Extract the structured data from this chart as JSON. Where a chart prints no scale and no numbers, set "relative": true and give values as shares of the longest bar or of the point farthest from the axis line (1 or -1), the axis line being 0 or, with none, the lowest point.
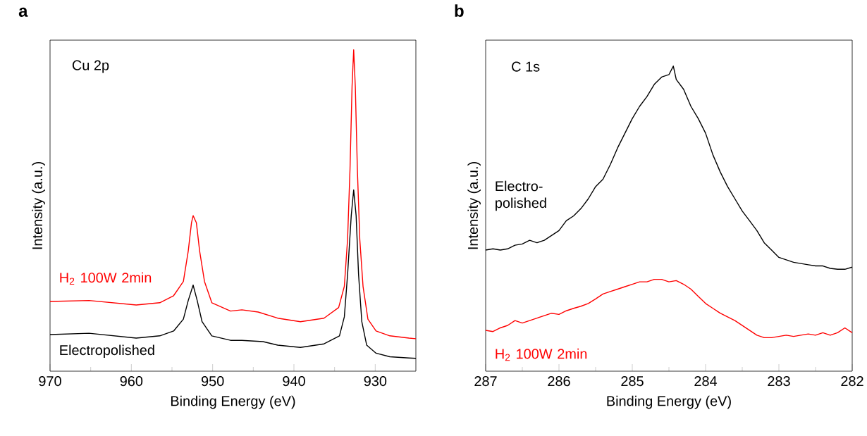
{
  "chart_data": [
    {
      "type": "line",
      "title": "a",
      "xlabel": "Binding Energy (eV)",
      "ylabel": "Intensity (a.u.)",
      "annotations": [
        "Cu 2p"
      ],
      "relative": true,
      "xlim": [
        970,
        925
      ],
      "xticks": [
        970,
        960,
        950,
        940,
        930
      ],
      "legend": false,
      "marker": "none",
      "line_style": "solid",
      "series": [
        {
          "name": "Electropolished",
          "color": "#000000",
          "x": [
            970.0,
            965.2,
            959.4,
            956.5,
            954.8,
            953.6,
            953.0,
            952.4,
            951.9,
            951.3,
            950.1,
            947.8,
            946.4,
            943.8,
            942.0,
            939.2,
            936.3,
            934.4,
            933.8,
            933.4,
            932.95,
            932.65,
            932.35,
            932.05,
            931.65,
            931.05,
            929.9,
            928.2,
            925.85,
            925.0
          ],
          "values": [
            0.114,
            0.118,
            0.103,
            0.11,
            0.125,
            0.162,
            0.22,
            0.268,
            0.22,
            0.154,
            0.11,
            0.096,
            0.096,
            0.092,
            0.081,
            0.074,
            0.085,
            0.11,
            0.169,
            0.301,
            0.484,
            0.564,
            0.484,
            0.301,
            0.154,
            0.081,
            0.056,
            0.045,
            0.041,
            0.04
          ]
        },
        {
          "name": "H$_{2}$ 100W 2min",
          "color": "#ff0000",
          "x": [
            970.0,
            965.2,
            959.4,
            956.5,
            954.8,
            953.6,
            953.0,
            952.6,
            952.4,
            952.0,
            951.6,
            951.0,
            950.1,
            947.8,
            946.4,
            944.4,
            942.0,
            939.2,
            936.3,
            934.5,
            933.8,
            933.4,
            933.1,
            932.85,
            932.65,
            932.45,
            932.2,
            931.9,
            931.5,
            930.9,
            929.9,
            928.2,
            925.85,
            925.0
          ],
          "values": [
            0.217,
            0.22,
            0.206,
            0.213,
            0.235,
            0.279,
            0.374,
            0.462,
            0.484,
            0.462,
            0.374,
            0.279,
            0.213,
            0.187,
            0.191,
            0.184,
            0.165,
            0.154,
            0.165,
            0.198,
            0.264,
            0.411,
            0.63,
            0.886,
            1.0,
            0.886,
            0.63,
            0.411,
            0.264,
            0.162,
            0.125,
            0.11,
            0.103,
            0.101
          ]
        }
      ]
    },
    {
      "type": "line",
      "title": "b",
      "xlabel": "Binding Energy (eV)",
      "ylabel": "Intensity (a.u.)",
      "annotations": [
        "C 1s"
      ],
      "relative": true,
      "xlim": [
        287,
        282
      ],
      "xticks": [
        287,
        286,
        285,
        284,
        283,
        282
      ],
      "legend": false,
      "marker": "none",
      "line_style": "solid",
      "series": [
        {
          "name": "Electro-polished",
          "color": "#000000",
          "x": [
            287.0,
            286.9,
            286.8,
            286.7,
            286.6,
            286.5,
            286.4,
            286.3,
            286.2,
            286.1,
            286.0,
            285.9,
            285.8,
            285.7,
            285.6,
            285.5,
            285.4,
            285.3,
            285.2,
            285.1,
            285.0,
            284.9,
            284.8,
            284.7,
            284.6,
            284.5,
            284.44,
            284.4,
            284.3,
            284.2,
            284.1,
            284.0,
            283.9,
            283.8,
            283.7,
            283.6,
            283.5,
            283.4,
            283.3,
            283.2,
            283.1,
            283.0,
            282.9,
            282.8,
            282.7,
            282.6,
            282.5,
            282.4,
            282.3,
            282.2,
            282.1,
            282.0
          ],
          "values": [
            0.397,
            0.401,
            0.397,
            0.401,
            0.413,
            0.417,
            0.429,
            0.421,
            0.429,
            0.445,
            0.461,
            0.493,
            0.509,
            0.533,
            0.565,
            0.605,
            0.629,
            0.677,
            0.732,
            0.78,
            0.828,
            0.868,
            0.9,
            0.94,
            0.964,
            0.972,
            1.0,
            0.956,
            0.924,
            0.868,
            0.828,
            0.78,
            0.709,
            0.653,
            0.605,
            0.565,
            0.525,
            0.493,
            0.461,
            0.421,
            0.397,
            0.373,
            0.365,
            0.357,
            0.353,
            0.349,
            0.345,
            0.345,
            0.337,
            0.334,
            0.334,
            0.341
          ]
        },
        {
          "name": "H$_{2}$ 100W 2min",
          "color": "#ff0000",
          "x": [
            287.0,
            286.9,
            286.8,
            286.7,
            286.6,
            286.5,
            286.4,
            286.3,
            286.2,
            286.1,
            286.0,
            285.9,
            285.8,
            285.7,
            285.6,
            285.5,
            285.4,
            285.3,
            285.2,
            285.1,
            285.0,
            284.9,
            284.8,
            284.7,
            284.6,
            284.5,
            284.4,
            284.3,
            284.2,
            284.1,
            284.0,
            283.9,
            283.8,
            283.7,
            283.6,
            283.5,
            283.4,
            283.3,
            283.2,
            283.1,
            283.0,
            282.9,
            282.8,
            282.7,
            282.6,
            282.5,
            282.4,
            282.3,
            282.2,
            282.1,
            282.0
          ],
          "values": [
            0.134,
            0.13,
            0.142,
            0.15,
            0.166,
            0.158,
            0.166,
            0.174,
            0.182,
            0.19,
            0.186,
            0.198,
            0.206,
            0.213,
            0.222,
            0.237,
            0.253,
            0.261,
            0.269,
            0.277,
            0.285,
            0.293,
            0.293,
            0.301,
            0.301,
            0.293,
            0.297,
            0.285,
            0.269,
            0.245,
            0.222,
            0.206,
            0.19,
            0.178,
            0.166,
            0.15,
            0.134,
            0.118,
            0.11,
            0.11,
            0.114,
            0.118,
            0.114,
            0.118,
            0.122,
            0.118,
            0.126,
            0.118,
            0.126,
            0.142,
            0.126
          ]
        }
      ]
    }
  ]
}
